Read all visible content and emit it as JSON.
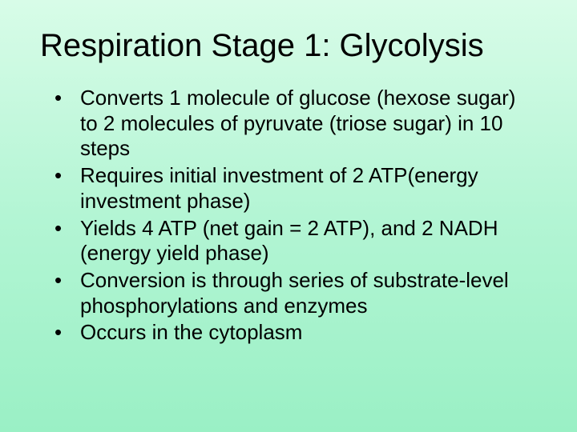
{
  "slide": {
    "title": "Respiration Stage 1: Glycolysis",
    "bullets": [
      "Converts 1 molecule of glucose (hexose sugar) to 2 molecules of pyruvate (triose sugar) in 10 steps",
      "Requires initial investment of 2 ATP(energy investment phase)",
      "Yields 4 ATP (net gain = 2 ATP), and 2 NADH (energy yield phase)",
      "Conversion is through series of substrate-level phosphorylations and enzymes",
      "Occurs in the cytoplasm"
    ],
    "background_gradient": [
      "#d8fce8",
      "#b3f5d4",
      "#9af0c5"
    ],
    "title_fontsize": 40,
    "bullet_fontsize": 26,
    "text_color": "#000000"
  }
}
